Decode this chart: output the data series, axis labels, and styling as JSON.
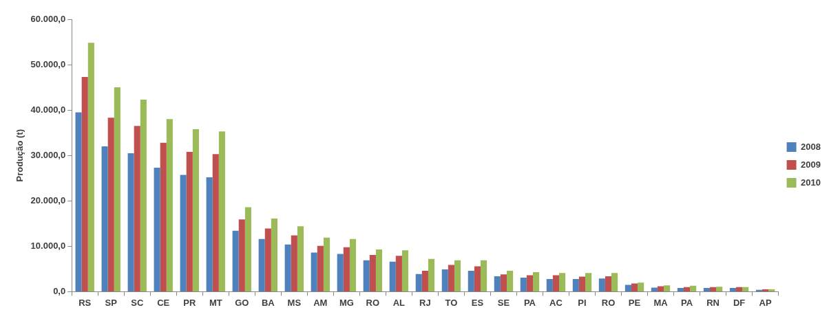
{
  "chart_data": {
    "type": "bar",
    "ylabel": "Produção (t)",
    "categories": [
      "RS",
      "SP",
      "SC",
      "CE",
      "PR",
      "MT",
      "GO",
      "BA",
      "MS",
      "AM",
      "MG",
      "RO",
      "AL",
      "RJ",
      "TO",
      "ES",
      "SE",
      "PA",
      "AC",
      "PI",
      "RO",
      "PE",
      "MA",
      "PA",
      "RN",
      "DF",
      "AP"
    ],
    "series": [
      {
        "name": "2008",
        "color": "#4f81bd",
        "values": [
          39500,
          32000,
          30500,
          27300,
          25700,
          25200,
          13400,
          11600,
          10400,
          8600,
          8300,
          6900,
          6600,
          3900,
          4900,
          4600,
          3400,
          3100,
          2800,
          2800,
          2900,
          1500,
          900,
          800,
          800,
          800,
          400
        ]
      },
      {
        "name": "2009",
        "color": "#c0504d",
        "values": [
          47300,
          38300,
          36500,
          32800,
          30800,
          30300,
          15900,
          13900,
          12400,
          10100,
          9800,
          8100,
          7900,
          4600,
          5900,
          5600,
          3800,
          3600,
          3600,
          3300,
          3400,
          1800,
          1200,
          1000,
          1000,
          1000,
          500
        ]
      },
      {
        "name": "2010",
        "color": "#9bbb59",
        "values": [
          54800,
          45000,
          42300,
          38000,
          35800,
          35300,
          18600,
          16100,
          14400,
          11900,
          11600,
          9300,
          9100,
          7200,
          6900,
          6900,
          4600,
          4300,
          4100,
          4100,
          4100,
          2000,
          1400,
          1300,
          1100,
          1000,
          500
        ]
      }
    ],
    "ylim": [
      0,
      60000
    ],
    "yticks": [
      {
        "value": 0,
        "label": "0,0"
      },
      {
        "value": 10000,
        "label": "10.000,0"
      },
      {
        "value": 20000,
        "label": "20.000,0"
      },
      {
        "value": 30000,
        "label": "30.000,0"
      },
      {
        "value": 40000,
        "label": "40.000,0"
      },
      {
        "value": 50000,
        "label": "50.000,0"
      },
      {
        "value": 60000,
        "label": "60.000,0"
      }
    ],
    "grid": false,
    "legend": "right"
  }
}
